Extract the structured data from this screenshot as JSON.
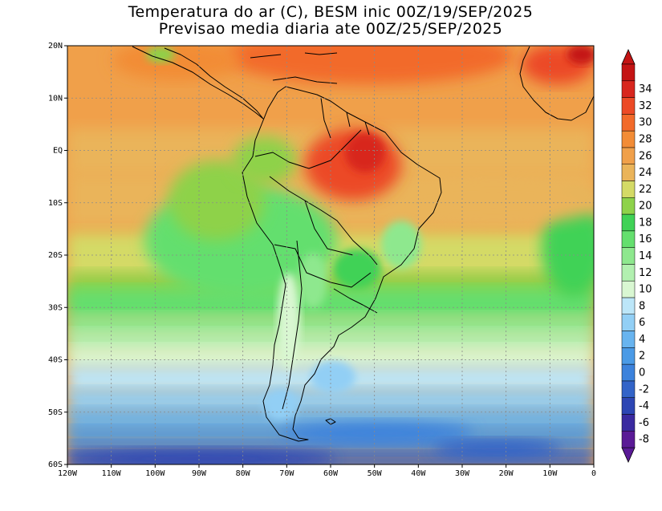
{
  "title": {
    "line1": "Temperatura do ar (C), BESM inic 00Z/19/SEP/2025",
    "line2": "Previsao media diaria ate 00Z/25/SEP/2025"
  },
  "map": {
    "lon_range": [
      -120,
      0
    ],
    "lat_range": [
      -60,
      20
    ],
    "lon_ticks": [
      {
        "value": -120,
        "label": "120W"
      },
      {
        "value": -110,
        "label": "110W"
      },
      {
        "value": -100,
        "label": "100W"
      },
      {
        "value": -90,
        "label": "90W"
      },
      {
        "value": -80,
        "label": "80W"
      },
      {
        "value": -70,
        "label": "70W"
      },
      {
        "value": -60,
        "label": "60W"
      },
      {
        "value": -50,
        "label": "50W"
      },
      {
        "value": -40,
        "label": "40W"
      },
      {
        "value": -30,
        "label": "30W"
      },
      {
        "value": -20,
        "label": "20W"
      },
      {
        "value": -10,
        "label": "10W"
      },
      {
        "value": 0,
        "label": "0"
      }
    ],
    "lat_ticks": [
      {
        "value": 20,
        "label": "20N"
      },
      {
        "value": 10,
        "label": "10N"
      },
      {
        "value": 0,
        "label": "EQ"
      },
      {
        "value": -10,
        "label": "10S"
      },
      {
        "value": -20,
        "label": "20S"
      },
      {
        "value": -30,
        "label": "30S"
      },
      {
        "value": -40,
        "label": "40S"
      },
      {
        "value": -50,
        "label": "50S"
      },
      {
        "value": -60,
        "label": "60S"
      }
    ],
    "grid": true
  },
  "colorbar": {
    "levels": [
      {
        "label": "-8",
        "color": "#5a1a96"
      },
      {
        "label": "-6",
        "color": "#3a2aa0"
      },
      {
        "label": "-4",
        "color": "#2d46b4"
      },
      {
        "label": "-2",
        "color": "#3364c8"
      },
      {
        "label": "0",
        "color": "#3c82dc"
      },
      {
        "label": "2",
        "color": "#4a9ae6"
      },
      {
        "label": "4",
        "color": "#68b4ef"
      },
      {
        "label": "6",
        "color": "#92cff5"
      },
      {
        "label": "8",
        "color": "#bce6f8"
      },
      {
        "label": "10",
        "color": "#d9f7d2"
      },
      {
        "label": "12",
        "color": "#b2f0b0"
      },
      {
        "label": "14",
        "color": "#8ee88e"
      },
      {
        "label": "16",
        "color": "#64df6e"
      },
      {
        "label": "18",
        "color": "#40d256"
      },
      {
        "label": "20",
        "color": "#8ed24a"
      },
      {
        "label": "22",
        "color": "#d4da66"
      },
      {
        "label": "24",
        "color": "#eab45a"
      },
      {
        "label": "26",
        "color": "#f0a04a"
      },
      {
        "label": "28",
        "color": "#f28c36"
      },
      {
        "label": "30",
        "color": "#f26a2a"
      },
      {
        "label": "32",
        "color": "#ec4a26"
      },
      {
        "label": "34",
        "color": "#d8261e"
      },
      {
        "label": "",
        "color": "#c41414"
      }
    ]
  }
}
